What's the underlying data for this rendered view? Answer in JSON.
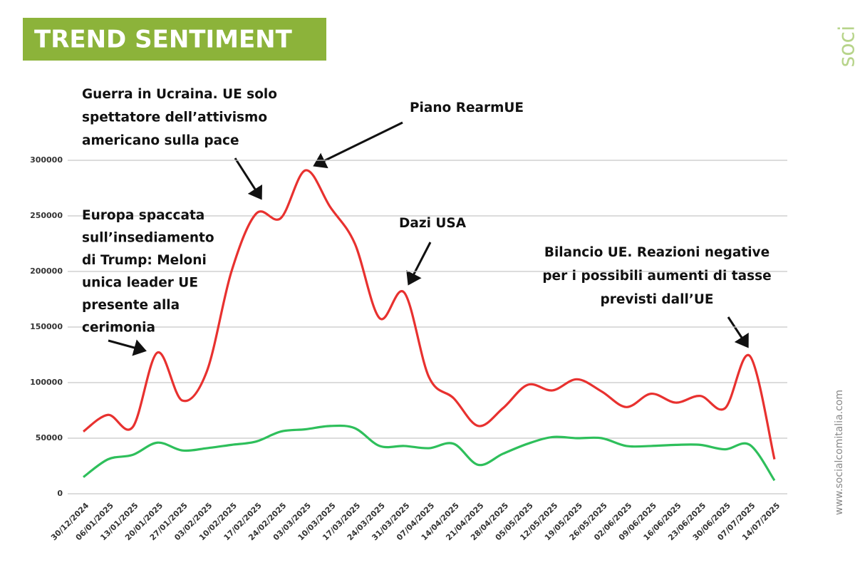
{
  "chart_data": {
    "type": "line",
    "title": "TREND SENTIMENT",
    "brand": "soci",
    "website": "www.socialcomitalia.com",
    "categories": [
      "30/12/2024",
      "06/01/2025",
      "13/01/2025",
      "20/01/2025",
      "27/01/2025",
      "03/02/2025",
      "10/02/2025",
      "17/02/2025",
      "24/02/2025",
      "03/03/2025",
      "10/03/2025",
      "17/03/2025",
      "24/03/2025",
      "31/03/2025",
      "07/04/2025",
      "14/04/2025",
      "21/04/2025",
      "28/04/2025",
      "05/05/2025",
      "12/05/2025",
      "19/05/2025",
      "26/05/2025",
      "02/06/2025",
      "09/06/2025",
      "16/06/2025",
      "23/06/2025",
      "30/06/2025",
      "07/07/2025",
      "14/07/2025"
    ],
    "series": [
      {
        "color": "#e8312f",
        "values": [
          56000,
          71000,
          60000,
          127000,
          84000,
          110000,
          200000,
          252000,
          248000,
          291000,
          258000,
          225000,
          158000,
          181000,
          105000,
          86000,
          61000,
          77000,
          98000,
          93000,
          103000,
          92000,
          78000,
          90000,
          82000,
          88000,
          77000,
          124000,
          31000
        ]
      },
      {
        "color": "#2ebf5b",
        "values": [
          15000,
          31000,
          35000,
          46000,
          39000,
          41000,
          44000,
          47000,
          56000,
          58000,
          61000,
          59000,
          43000,
          43000,
          41000,
          45000,
          26000,
          36000,
          45000,
          51000,
          50000,
          50000,
          43000,
          43000,
          44000,
          44000,
          40000,
          44000,
          12000
        ]
      }
    ],
    "ylim": [
      0,
      300000
    ],
    "yticks": [
      0,
      50000,
      100000,
      150000,
      200000,
      250000,
      300000
    ],
    "grid": true,
    "annotations": [
      {
        "lines": [
          "Europa spaccata",
          "sull’insediamento",
          "di Trump: Meloni",
          "unica leader UE",
          "presente alla",
          "cerimonia"
        ]
      },
      {
        "lines": [
          "Guerra in Ucraina. UE solo",
          "spettatore dell’attivismo",
          "americano sulla pace"
        ]
      },
      {
        "lines": [
          "Piano RearmUE"
        ]
      },
      {
        "lines": [
          "Dazi USA"
        ]
      },
      {
        "lines": [
          "Bilancio UE. Reazioni negative",
          "per i possibili aumenti di tasse",
          "previsti dall’UE"
        ]
      }
    ]
  }
}
